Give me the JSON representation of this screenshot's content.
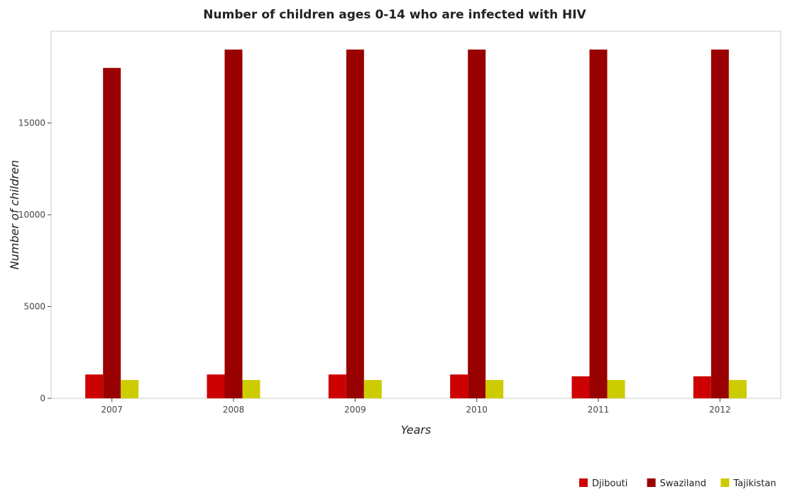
{
  "chart_data": {
    "type": "bar",
    "title": "Number of children ages 0-14 who are infected with HIV",
    "xlabel": "Years",
    "ylabel": "Number of children",
    "categories": [
      "2007",
      "2008",
      "2009",
      "2010",
      "2011",
      "2012"
    ],
    "ylim": [
      0,
      20000
    ],
    "yticks": [
      0,
      5000,
      10000,
      15000
    ],
    "ytick_labels": [
      "0",
      "5000",
      "10000",
      "15000"
    ],
    "series": [
      {
        "name": "Djibouti",
        "color": "#cc0000",
        "values": [
          1300,
          1300,
          1300,
          1300,
          1200,
          1200
        ]
      },
      {
        "name": "Swaziland",
        "color": "#990000",
        "values": [
          18000,
          19000,
          19000,
          19000,
          19000,
          19000
        ]
      },
      {
        "name": "Tajikistan",
        "color": "#cccc00",
        "values": [
          1000,
          1000,
          1000,
          1000,
          1000,
          1000
        ]
      }
    ],
    "legend_position": "bottom-right",
    "grid": false
  }
}
